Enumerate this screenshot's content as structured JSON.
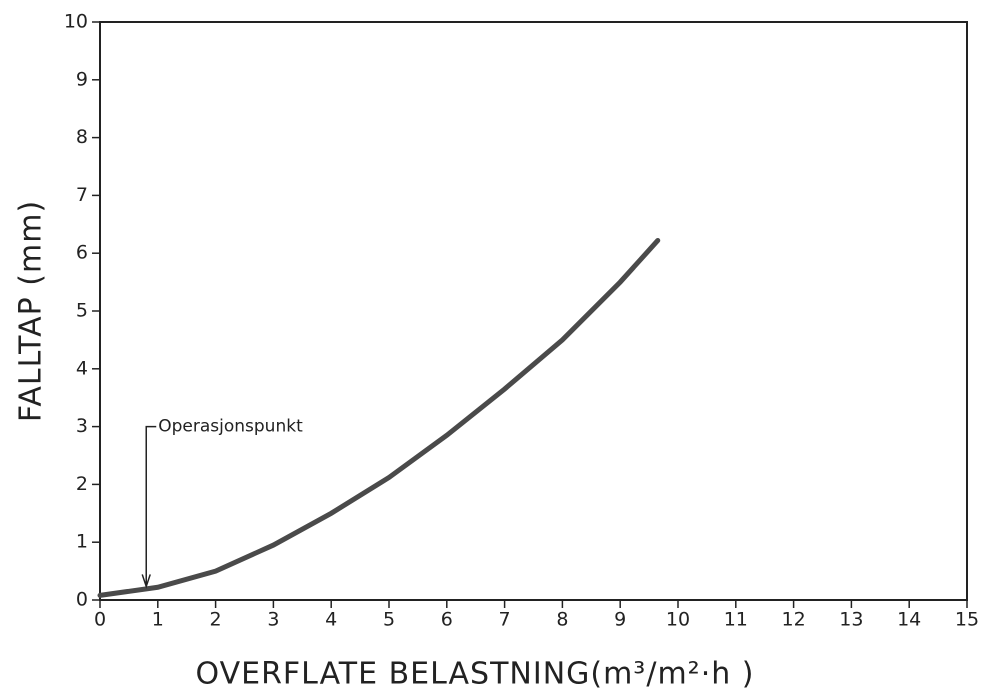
{
  "chart_data": {
    "type": "line",
    "xlabel": "OVERFLATE  BELASTNING(m³/m²·h )",
    "ylabel": "FALLTAP (mm)",
    "x": [
      0,
      1,
      2,
      3,
      4,
      5,
      6,
      7,
      8,
      9,
      9.65
    ],
    "series": [
      {
        "name": "Falltap",
        "color": "#4a4a4a",
        "values": [
          0.08,
          0.22,
          0.5,
          0.95,
          1.5,
          2.12,
          2.85,
          3.65,
          4.5,
          5.5,
          6.22
        ]
      }
    ],
    "annotations": [
      {
        "text": "Operasjonspunkt",
        "x": 0.8,
        "y": 0.2
      }
    ],
    "xlim": [
      0,
      15
    ],
    "xticks": [
      0,
      1,
      2,
      3,
      4,
      5,
      6,
      7,
      8,
      9,
      10,
      11,
      12,
      13,
      14,
      15
    ],
    "ylim": [
      0,
      10
    ],
    "yticks": [
      0,
      1,
      2,
      3,
      4,
      5,
      6,
      7,
      8,
      9,
      10
    ],
    "grid": false
  }
}
